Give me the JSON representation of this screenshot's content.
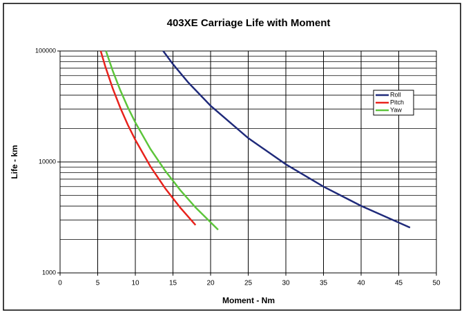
{
  "chart_data": {
    "type": "line",
    "title": "403XE Carriage Life with Moment",
    "xlabel": "Moment - Nm",
    "ylabel": "Life - km",
    "xlim": [
      0,
      50
    ],
    "xticks": [
      0,
      5,
      10,
      15,
      20,
      25,
      30,
      35,
      40,
      45,
      50
    ],
    "ylim": [
      1000,
      100000
    ],
    "yticks": [
      1000,
      10000,
      100000
    ],
    "ylog": true,
    "grid": true,
    "yminor": [
      2000,
      3000,
      4000,
      5000,
      6000,
      7000,
      8000,
      9000,
      20000,
      30000,
      40000,
      50000,
      60000,
      70000,
      80000,
      90000
    ],
    "legend": "upper right",
    "series": [
      {
        "name": "Roll",
        "color": "#1f2a7a",
        "x": [
          13.7,
          15,
          17,
          20,
          25,
          30,
          35,
          40,
          46.5
        ],
        "values": [
          100000,
          76100,
          52300,
          32100,
          16400,
          9520,
          5990,
          4020,
          2560
        ]
      },
      {
        "name": "Pitch",
        "color": "#e8221c",
        "x": [
          5.4,
          6,
          7,
          8,
          9,
          10,
          12,
          14,
          16,
          18
        ],
        "values": [
          100000,
          72900,
          45900,
          30800,
          21600,
          15800,
          9110,
          5740,
          3850,
          2700
        ]
      },
      {
        "name": "Yaw",
        "color": "#5cc53a",
        "x": [
          6.1,
          7,
          8,
          9,
          10,
          12,
          14,
          16,
          18,
          21
        ],
        "values": [
          100000,
          66200,
          44300,
          31100,
          22700,
          13100,
          8270,
          5540,
          3890,
          2450
        ]
      }
    ]
  }
}
